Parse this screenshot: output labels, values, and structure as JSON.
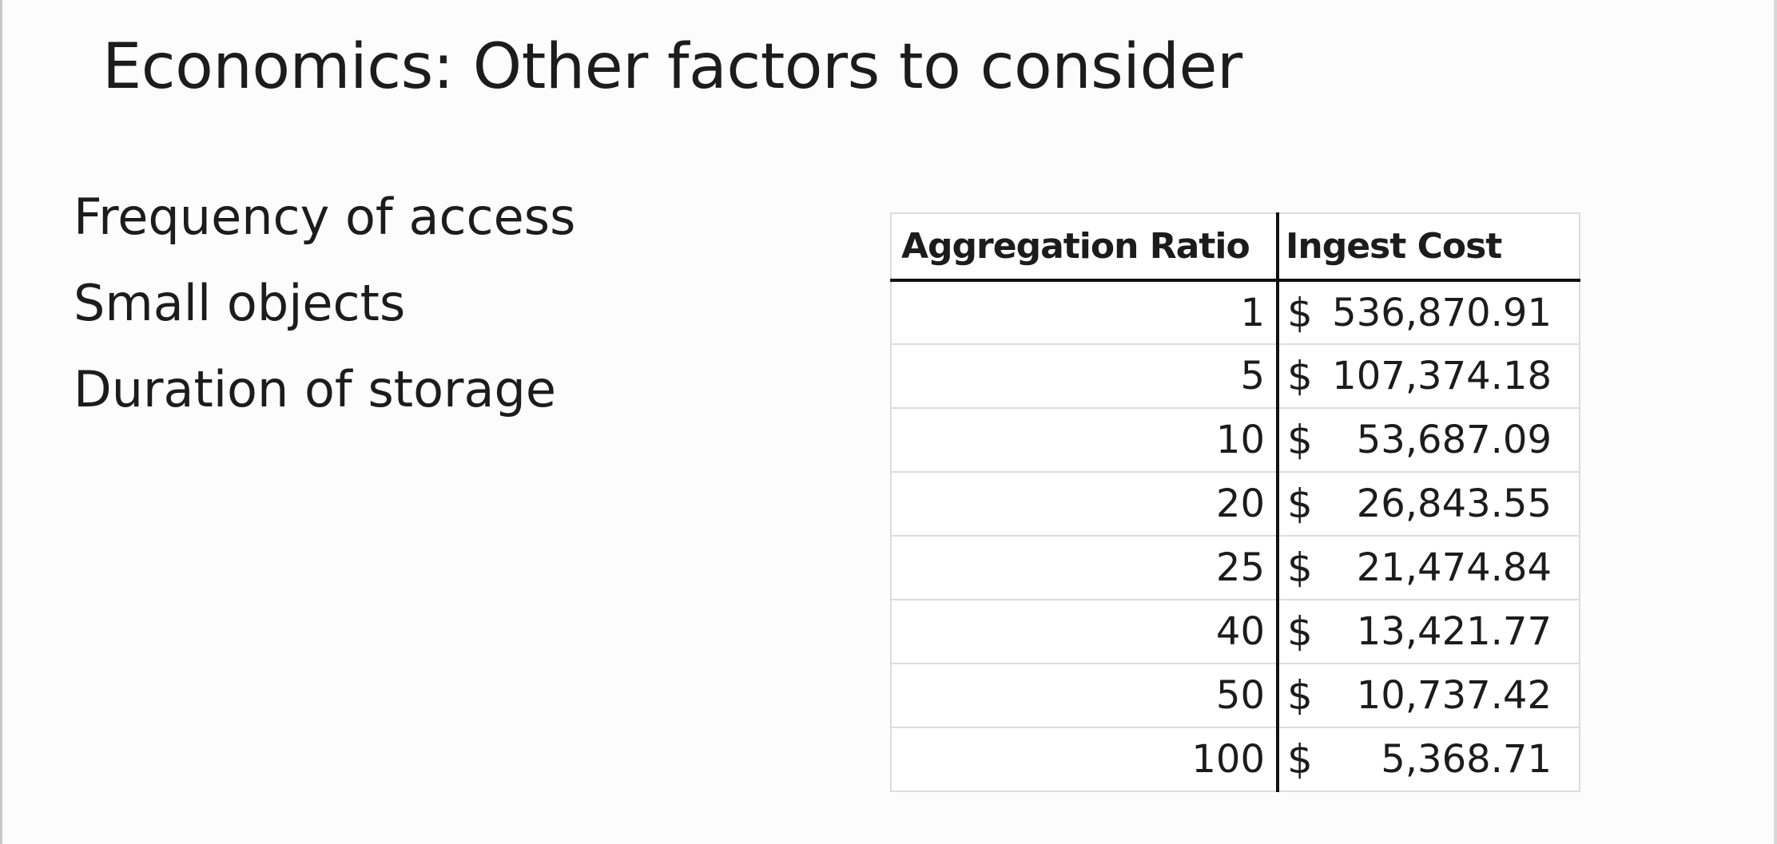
{
  "slide": {
    "title": "Economics: Other factors to consider",
    "bullets": [
      "Frequency of access",
      "Small objects",
      "Duration of storage"
    ]
  },
  "table": {
    "headers": {
      "ratio": "Aggregation Ratio",
      "cost": "Ingest Cost"
    },
    "currency_symbol": "$",
    "rows": [
      {
        "ratio": "1",
        "cost": "536,870.91"
      },
      {
        "ratio": "5",
        "cost": "107,374.18"
      },
      {
        "ratio": "10",
        "cost": "53,687.09"
      },
      {
        "ratio": "20",
        "cost": "26,843.55"
      },
      {
        "ratio": "25",
        "cost": "21,474.84"
      },
      {
        "ratio": "40",
        "cost": "13,421.77"
      },
      {
        "ratio": "50",
        "cost": "10,737.42"
      },
      {
        "ratio": "100",
        "cost": "5,368.71"
      }
    ]
  }
}
